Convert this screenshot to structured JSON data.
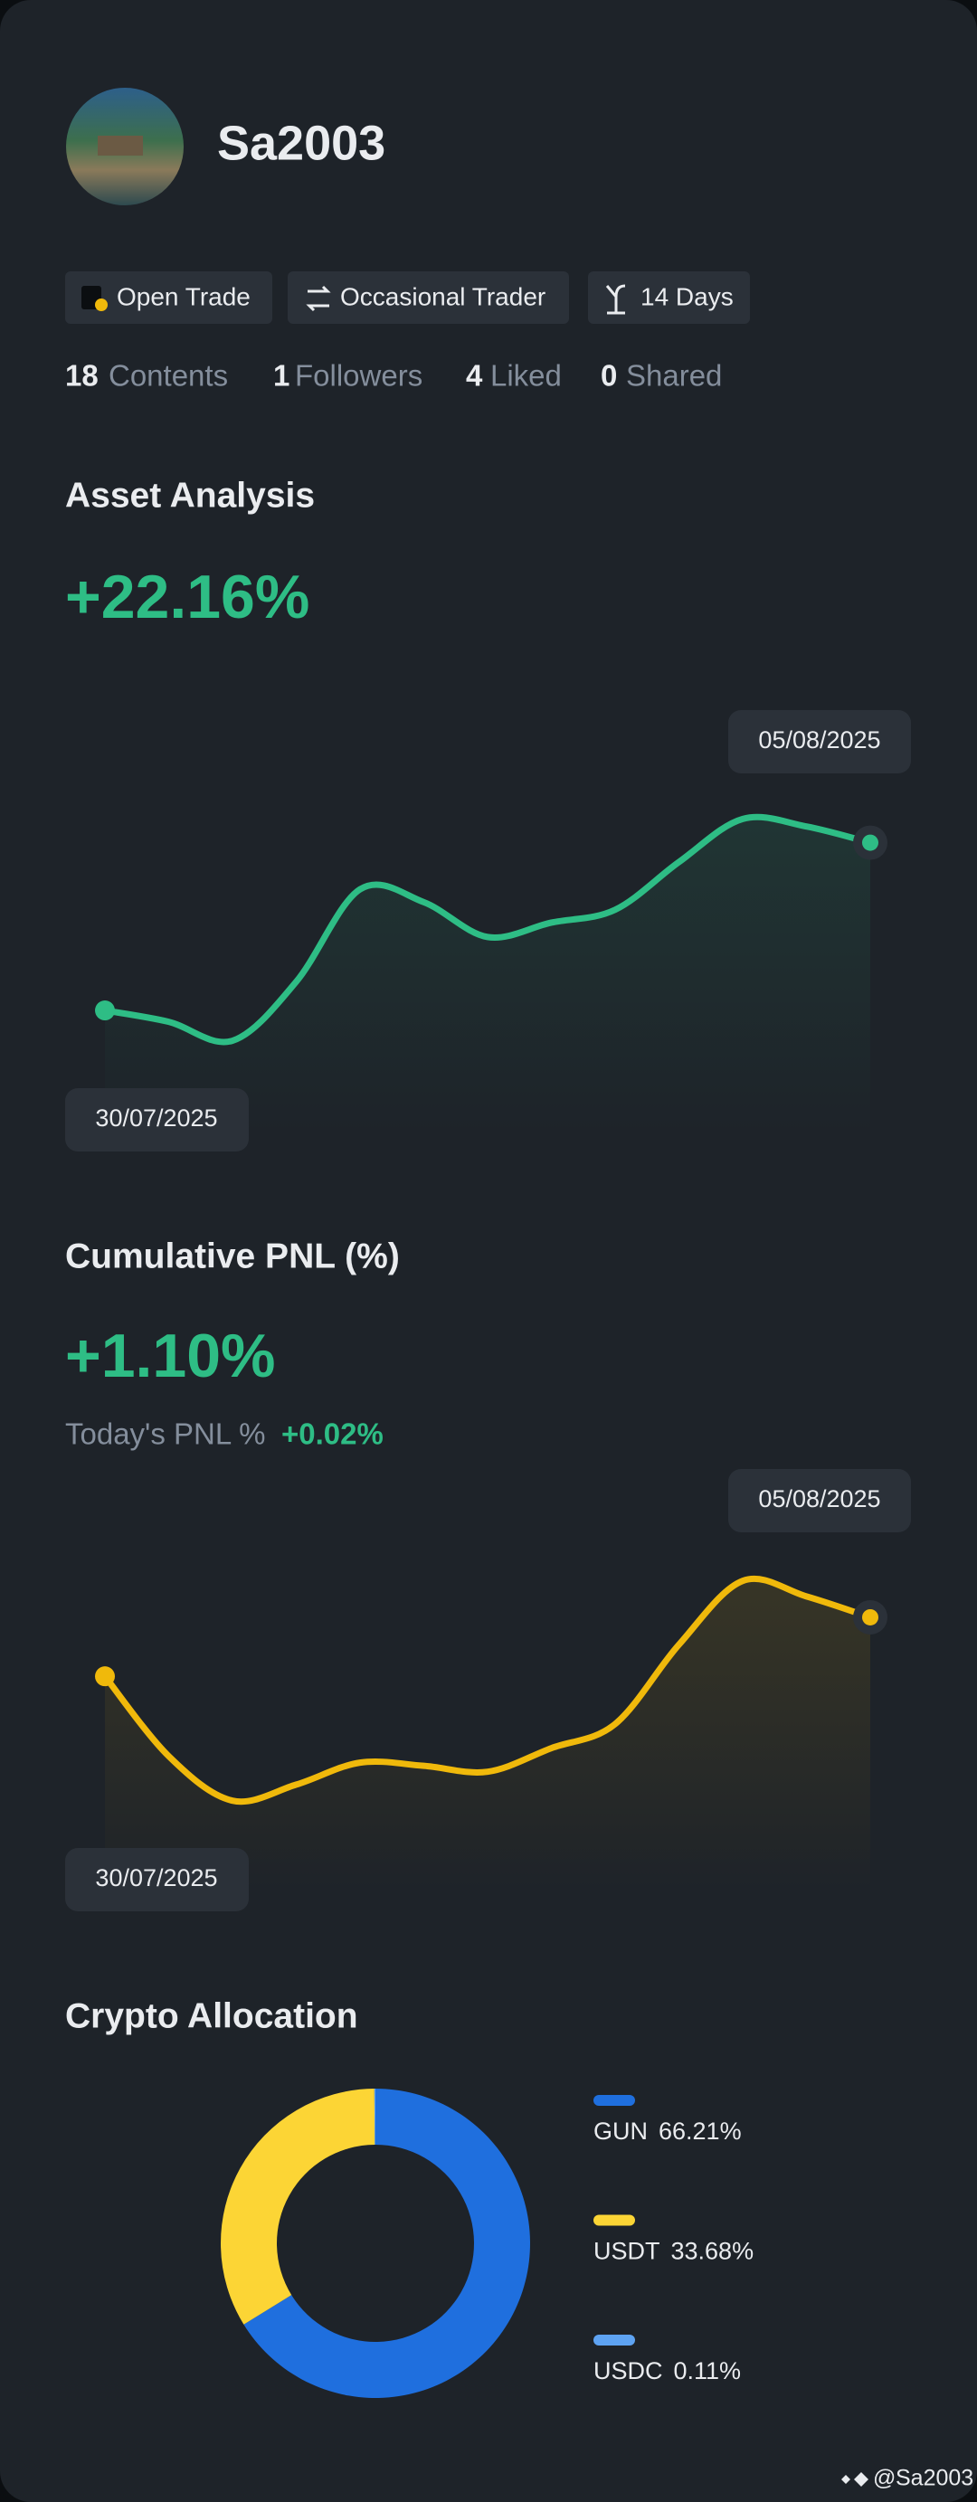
{
  "profile": {
    "username": "Sa2003",
    "badges": [
      "Open Trade",
      "Occasional Trader",
      "14 Days"
    ],
    "stats": [
      {
        "value": 18,
        "label": "Contents"
      },
      {
        "value": 1,
        "label": "Followers"
      },
      {
        "value": 4,
        "label": "Liked"
      },
      {
        "value": 0,
        "label": "Shared"
      }
    ]
  },
  "chart_data": [
    {
      "type": "line",
      "title": "Asset Analysis",
      "headline": "+22.16%",
      "color": "#2ebd85",
      "categories": [
        "30/07/2025",
        null,
        null,
        null,
        null,
        null,
        null,
        null,
        null,
        null,
        null,
        null,
        "05/08/2025"
      ],
      "values": [
        0,
        -1.5,
        -4.0,
        3.8,
        16.0,
        14.3,
        9.7,
        11.6,
        13.3,
        19.6,
        25.3,
        24.3,
        22.16
      ],
      "ylim": [
        -8,
        30
      ]
    },
    {
      "type": "line",
      "title": "Cumulative PNL (%)",
      "headline": "+1.10%",
      "subtitle": "Today's PNL %",
      "subtitle_value": "+0.02%",
      "color": "#f0b90b",
      "categories": [
        "30/07/2025",
        null,
        null,
        null,
        null,
        null,
        null,
        null,
        null,
        null,
        null,
        null,
        "05/08/2025"
      ],
      "values": [
        0,
        -1.49,
        -2.32,
        -2.02,
        -1.61,
        -1.67,
        -1.78,
        -1.34,
        -0.89,
        0.59,
        1.78,
        1.49,
        1.1
      ],
      "ylim": [
        -3,
        2.5
      ]
    },
    {
      "type": "pie",
      "title": "Crypto Allocation",
      "categories": [
        "GUN",
        "USDT",
        "USDC"
      ],
      "values": [
        66.21,
        33.68,
        0.11
      ],
      "value_labels": [
        "66.21%",
        "33.68%",
        "0.11%"
      ],
      "colors": [
        "#1f6fde",
        "#fcd535",
        "#5ea3f2"
      ]
    }
  ],
  "footer": {
    "handle": "Sa2003"
  }
}
